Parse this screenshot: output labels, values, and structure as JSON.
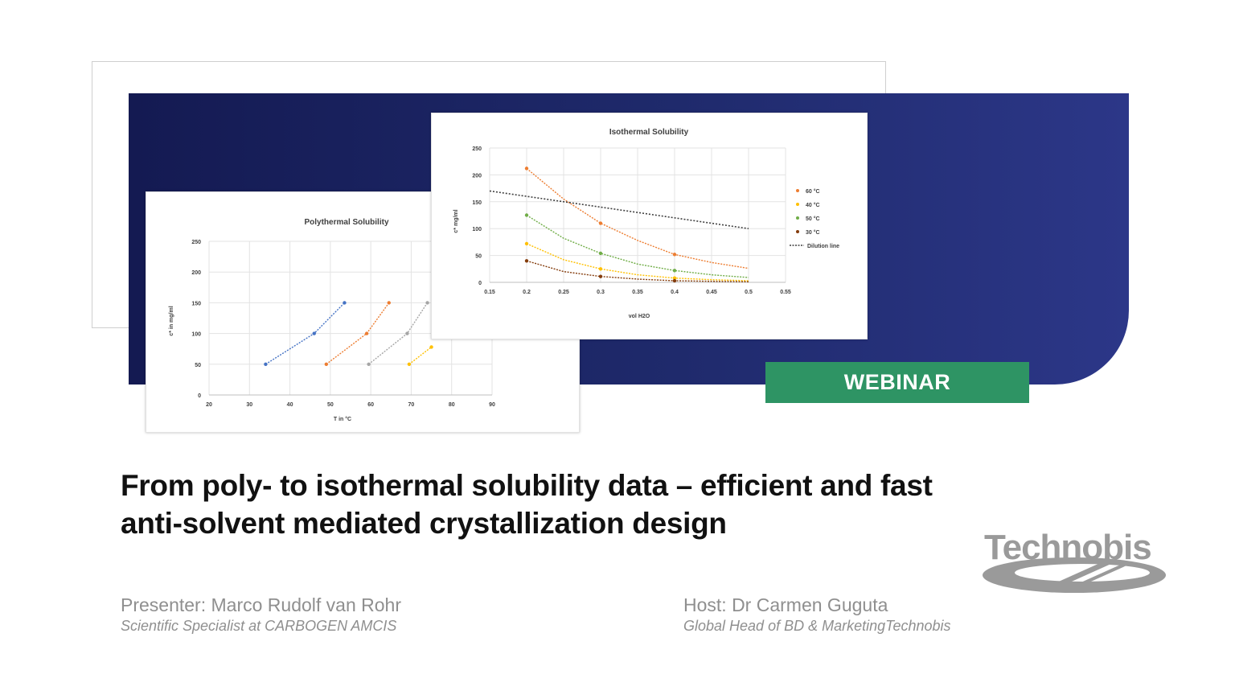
{
  "colors": {
    "navy": "#1f2a6c",
    "webinar_green": "#2e9464",
    "title_text": "#111111",
    "gray_text": "#8f8f8f"
  },
  "badge": {
    "label": "WEBINAR"
  },
  "title": {
    "line1": "From poly- to isothermal solubility data – efficient and fast",
    "line2": "anti-solvent mediated crystallization design"
  },
  "presenter": {
    "name": "Presenter: Marco Rudolf van Rohr",
    "role": "Scientific Specialist at CARBOGEN AMCIS"
  },
  "host": {
    "name": "Host: Dr Carmen Guguta",
    "role": "Global Head of BD & MarketingTechnobis"
  },
  "logo": {
    "text": "Technobis"
  },
  "chart_data": [
    {
      "type": "scatter",
      "title": "Polythermal Solubility",
      "xlabel": "T in °C",
      "ylabel": "c* in mg/ml",
      "xlim": [
        20,
        90
      ],
      "ylim": [
        0,
        250
      ],
      "xticks": [
        20,
        30,
        40,
        50,
        60,
        70,
        80,
        90
      ],
      "yticks": [
        0,
        50,
        100,
        150,
        200,
        250
      ],
      "grid": true,
      "series": [
        {
          "color": "#4472c4",
          "points": [
            [
              34,
              50
            ],
            [
              46,
              100
            ],
            [
              53.5,
              150
            ]
          ]
        },
        {
          "color": "#ed7d31",
          "points": [
            [
              49,
              50
            ],
            [
              59,
              100
            ],
            [
              64.5,
              150
            ]
          ]
        },
        {
          "color": "#a5a5a5",
          "points": [
            [
              59.5,
              50
            ],
            [
              69,
              100
            ],
            [
              74,
              150
            ]
          ]
        },
        {
          "color": "#ffc000",
          "points": [
            [
              69.5,
              50
            ],
            [
              75,
              78
            ]
          ]
        }
      ]
    },
    {
      "type": "scatter",
      "title": "Isothermal Solubility",
      "xlabel": "vol H2O",
      "ylabel": "c* mg/ml",
      "xlim": [
        0.15,
        0.55
      ],
      "ylim": [
        0,
        250
      ],
      "xticks": [
        "0.15",
        "0.2",
        "0.25",
        "0.3",
        "0.35",
        "0.4",
        "0.45",
        "0.5",
        "0.55"
      ],
      "yticks": [
        0,
        50,
        100,
        150,
        200,
        250
      ],
      "grid": true,
      "legend_position": "right",
      "series": [
        {
          "name": "60 °C",
          "color": "#ed7d31",
          "points": [
            [
              0.2,
              212
            ],
            [
              0.3,
              110
            ],
            [
              0.4,
              52
            ]
          ],
          "curve": [
            [
              0.2,
              212
            ],
            [
              0.25,
              155
            ],
            [
              0.3,
              110
            ],
            [
              0.35,
              78
            ],
            [
              0.4,
              52
            ],
            [
              0.45,
              37
            ],
            [
              0.5,
              26
            ]
          ]
        },
        {
          "name": "40 °C",
          "color": "#ffc000",
          "points": [
            [
              0.2,
              72
            ],
            [
              0.3,
              25
            ],
            [
              0.4,
              8
            ]
          ],
          "curve": [
            [
              0.2,
              72
            ],
            [
              0.25,
              42
            ],
            [
              0.3,
              25
            ],
            [
              0.35,
              14
            ],
            [
              0.4,
              8
            ],
            [
              0.45,
              5
            ],
            [
              0.5,
              3
            ]
          ]
        },
        {
          "name": "50 °C",
          "color": "#70ad47",
          "points": [
            [
              0.2,
              125
            ],
            [
              0.3,
              54
            ],
            [
              0.4,
              22
            ]
          ],
          "curve": [
            [
              0.2,
              125
            ],
            [
              0.25,
              82
            ],
            [
              0.3,
              54
            ],
            [
              0.35,
              34
            ],
            [
              0.4,
              22
            ],
            [
              0.45,
              14
            ],
            [
              0.5,
              9
            ]
          ]
        },
        {
          "name": "30 °C",
          "color": "#843c0c",
          "points": [
            [
              0.2,
              40
            ],
            [
              0.3,
              11
            ],
            [
              0.4,
              3
            ]
          ],
          "curve": [
            [
              0.2,
              40
            ],
            [
              0.25,
              20
            ],
            [
              0.3,
              11
            ],
            [
              0.35,
              6
            ],
            [
              0.4,
              3
            ],
            [
              0.45,
              2
            ],
            [
              0.5,
              1
            ]
          ]
        },
        {
          "name": "Dilution line",
          "color": "#404040",
          "dashed": true,
          "points": [],
          "curve": [
            [
              0.15,
              170
            ],
            [
              0.5,
              100
            ]
          ]
        }
      ]
    }
  ]
}
